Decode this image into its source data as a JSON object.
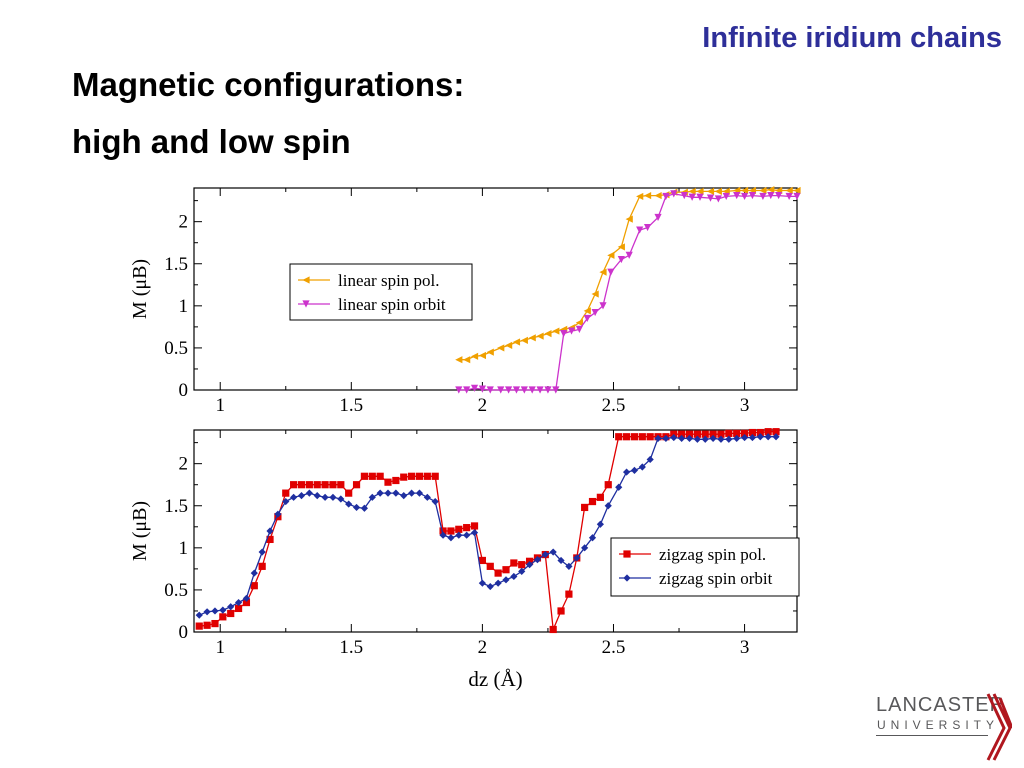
{
  "slide": {
    "title": "Infinite iridium chains",
    "heading_line1": "Magnetic configurations:",
    "heading_line2": "high and low spin"
  },
  "logo": {
    "name": "LANCASTER",
    "sub": "UNIVERSITY"
  },
  "chart_data": [
    {
      "type": "line",
      "ylabel": "M (μB)",
      "xlim": [
        0.9,
        3.2
      ],
      "ylim": [
        0,
        2.4
      ],
      "xticks": [
        "1",
        "1.5",
        "2",
        "2.5",
        "3"
      ],
      "yticks": [
        "0",
        "0.5",
        "1",
        "1.5",
        "2"
      ],
      "legend_position": "center-left",
      "series": [
        {
          "name": "linear spin pol.",
          "color": "#f0a000",
          "marker": "triangle-left",
          "x": [
            1.91,
            1.94,
            1.97,
            2.0,
            2.03,
            2.07,
            2.1,
            2.13,
            2.16,
            2.19,
            2.22,
            2.25,
            2.28,
            2.31,
            2.34,
            2.37,
            2.4,
            2.43,
            2.46,
            2.49,
            2.53,
            2.56,
            2.6,
            2.63,
            2.67,
            2.7,
            2.73,
            2.77,
            2.8,
            2.83,
            2.87,
            2.9,
            2.93,
            2.97,
            3.0,
            3.03,
            3.07,
            3.1,
            3.13,
            3.17,
            3.2
          ],
          "y": [
            0.36,
            0.36,
            0.4,
            0.41,
            0.45,
            0.5,
            0.53,
            0.57,
            0.59,
            0.62,
            0.64,
            0.67,
            0.7,
            0.72,
            0.74,
            0.8,
            0.94,
            1.14,
            1.4,
            1.6,
            1.7,
            2.03,
            2.3,
            2.31,
            2.31,
            2.32,
            2.35,
            2.35,
            2.36,
            2.36,
            2.36,
            2.36,
            2.36,
            2.37,
            2.37,
            2.37,
            2.37,
            2.38,
            2.37,
            2.37,
            2.37
          ]
        },
        {
          "name": "linear spin orbit",
          "color": "#cc33cc",
          "marker": "triangle-down",
          "x": [
            1.91,
            1.94,
            1.97,
            2.0,
            2.03,
            2.07,
            2.1,
            2.13,
            2.16,
            2.19,
            2.22,
            2.25,
            2.28,
            2.31,
            2.34,
            2.37,
            2.4,
            2.43,
            2.46,
            2.49,
            2.53,
            2.56,
            2.6,
            2.63,
            2.67,
            2.7,
            2.73,
            2.77,
            2.8,
            2.83,
            2.87,
            2.9,
            2.93,
            2.97,
            3.0,
            3.03,
            3.07,
            3.1,
            3.13,
            3.17,
            3.2
          ],
          "y": [
            0.0,
            0.0,
            0.02,
            0.01,
            0.0,
            0.0,
            0.0,
            0.0,
            0.0,
            0.0,
            0.0,
            0.0,
            0.0,
            0.67,
            0.7,
            0.72,
            0.85,
            0.92,
            1.0,
            1.4,
            1.55,
            1.6,
            1.9,
            1.93,
            2.05,
            2.3,
            2.33,
            2.31,
            2.29,
            2.29,
            2.28,
            2.27,
            2.3,
            2.31,
            2.3,
            2.31,
            2.3,
            2.31,
            2.31,
            2.3,
            2.3
          ]
        }
      ]
    },
    {
      "type": "line",
      "xlabel": "dz (Å)",
      "ylabel": "M (μB)",
      "xlim": [
        0.9,
        3.2
      ],
      "ylim": [
        0,
        2.4
      ],
      "xticks": [
        "1",
        "1.5",
        "2",
        "2.5",
        "3"
      ],
      "yticks": [
        "0",
        "0.5",
        "1",
        "1.5",
        "2"
      ],
      "legend_position": "center-right",
      "series": [
        {
          "name": "zigzag spin pol.",
          "color": "#e00000",
          "marker": "square",
          "x": [
            0.92,
            0.95,
            0.98,
            1.01,
            1.04,
            1.07,
            1.1,
            1.13,
            1.16,
            1.19,
            1.22,
            1.25,
            1.28,
            1.31,
            1.34,
            1.37,
            1.4,
            1.43,
            1.46,
            1.49,
            1.52,
            1.55,
            1.58,
            1.61,
            1.64,
            1.67,
            1.7,
            1.73,
            1.76,
            1.79,
            1.82,
            1.85,
            1.88,
            1.91,
            1.94,
            1.97,
            2.0,
            2.03,
            2.06,
            2.09,
            2.12,
            2.15,
            2.18,
            2.21,
            2.24,
            2.27,
            2.3,
            2.33,
            2.36,
            2.39,
            2.42,
            2.45,
            2.48,
            2.52,
            2.55,
            2.58,
            2.61,
            2.64,
            2.67,
            2.7,
            2.73,
            2.76,
            2.79,
            2.82,
            2.85,
            2.88,
            2.91,
            2.94,
            2.97,
            3.0,
            3.03,
            3.06,
            3.09,
            3.12
          ],
          "y": [
            0.07,
            0.08,
            0.1,
            0.18,
            0.22,
            0.28,
            0.35,
            0.55,
            0.78,
            1.1,
            1.37,
            1.65,
            1.75,
            1.75,
            1.75,
            1.75,
            1.75,
            1.75,
            1.75,
            1.65,
            1.75,
            1.85,
            1.85,
            1.85,
            1.78,
            1.8,
            1.84,
            1.85,
            1.85,
            1.85,
            1.85,
            1.2,
            1.2,
            1.22,
            1.24,
            1.26,
            0.85,
            0.78,
            0.7,
            0.74,
            0.82,
            0.8,
            0.84,
            0.88,
            0.92,
            0.03,
            0.25,
            0.45,
            0.88,
            1.48,
            1.55,
            1.6,
            1.75,
            2.32,
            2.32,
            2.32,
            2.32,
            2.32,
            2.32,
            2.32,
            2.35,
            2.35,
            2.35,
            2.35,
            2.35,
            2.35,
            2.35,
            2.36,
            2.36,
            2.36,
            2.37,
            2.37,
            2.38,
            2.38
          ]
        },
        {
          "name": "zigzag spin orbit",
          "color": "#1f2fa0",
          "marker": "diamond",
          "x": [
            0.92,
            0.95,
            0.98,
            1.01,
            1.04,
            1.07,
            1.1,
            1.13,
            1.16,
            1.19,
            1.22,
            1.25,
            1.28,
            1.31,
            1.34,
            1.37,
            1.4,
            1.43,
            1.46,
            1.49,
            1.52,
            1.55,
            1.58,
            1.61,
            1.64,
            1.67,
            1.7,
            1.73,
            1.76,
            1.79,
            1.82,
            1.85,
            1.88,
            1.91,
            1.94,
            1.97,
            2.0,
            2.03,
            2.06,
            2.09,
            2.12,
            2.15,
            2.18,
            2.21,
            2.24,
            2.27,
            2.3,
            2.33,
            2.36,
            2.39,
            2.42,
            2.45,
            2.48,
            2.52,
            2.55,
            2.58,
            2.61,
            2.64,
            2.67,
            2.7,
            2.73,
            2.76,
            2.79,
            2.82,
            2.85,
            2.88,
            2.91,
            2.94,
            2.97,
            3.0,
            3.03,
            3.06,
            3.09,
            3.12
          ],
          "y": [
            0.2,
            0.24,
            0.25,
            0.26,
            0.3,
            0.35,
            0.4,
            0.7,
            0.95,
            1.2,
            1.4,
            1.55,
            1.6,
            1.62,
            1.65,
            1.62,
            1.6,
            1.6,
            1.58,
            1.52,
            1.48,
            1.47,
            1.6,
            1.65,
            1.65,
            1.65,
            1.62,
            1.65,
            1.65,
            1.6,
            1.55,
            1.15,
            1.12,
            1.15,
            1.15,
            1.18,
            0.58,
            0.54,
            0.58,
            0.62,
            0.66,
            0.72,
            0.8,
            0.86,
            0.92,
            0.95,
            0.85,
            0.78,
            0.88,
            1.0,
            1.12,
            1.28,
            1.5,
            1.72,
            1.9,
            1.92,
            1.96,
            2.05,
            2.3,
            2.3,
            2.31,
            2.3,
            2.3,
            2.29,
            2.29,
            2.3,
            2.29,
            2.29,
            2.3,
            2.31,
            2.31,
            2.32,
            2.32,
            2.32
          ]
        }
      ]
    }
  ]
}
